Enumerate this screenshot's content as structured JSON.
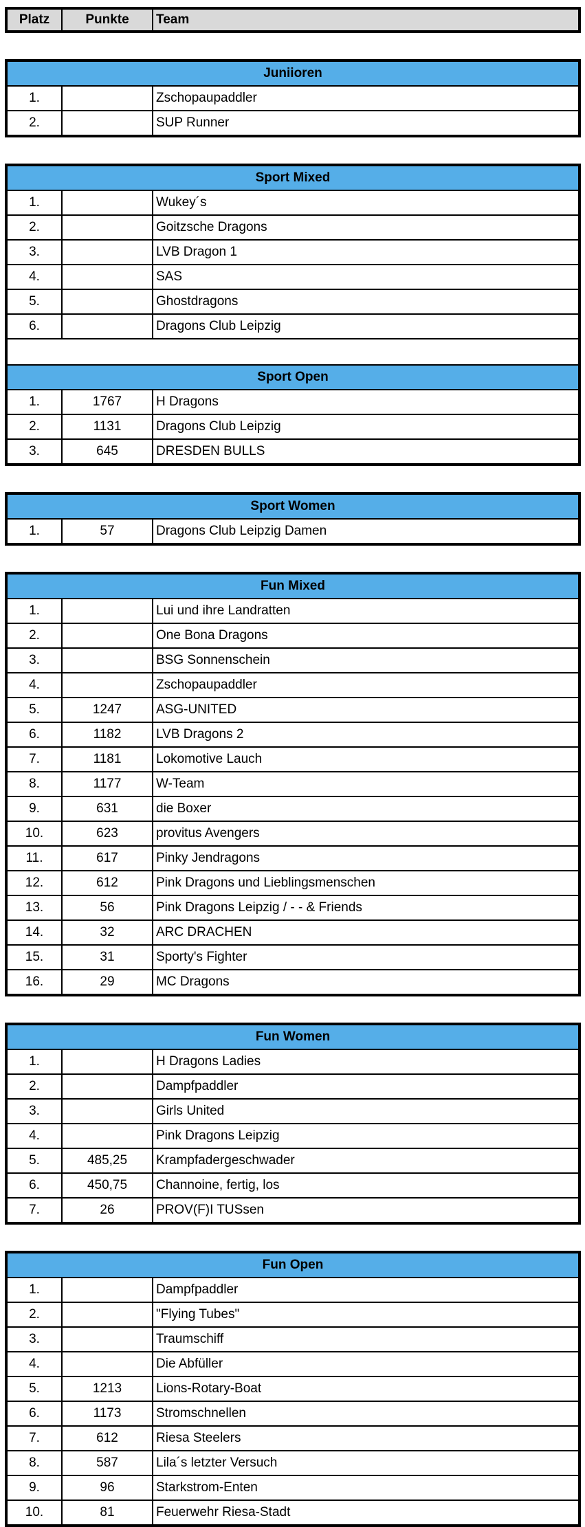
{
  "header": {
    "platz": "Platz",
    "punkte": "Punkte",
    "team": "Team"
  },
  "colors": {
    "header_bg": "#d9d9d9",
    "section_bg": "#55aee8"
  },
  "sections": [
    {
      "title": "Juniioren",
      "rows": [
        [
          "1.",
          "",
          "Zschopaupaddler"
        ],
        [
          "2.",
          "",
          "SUP Runner"
        ]
      ]
    },
    {
      "title": "Sport Mixed",
      "rows": [
        [
          "1.",
          "",
          "Wukey´s"
        ],
        [
          "2.",
          "",
          "Goitzsche Dragons"
        ],
        [
          "3.",
          "",
          "LVB Dragon 1"
        ],
        [
          "4.",
          "",
          "SAS"
        ],
        [
          "5.",
          "",
          "Ghostdragons"
        ],
        [
          "6.",
          "",
          "Dragons Club Leipzig"
        ]
      ],
      "blank_after": true
    },
    {
      "title": "Sport Open",
      "rows": [
        [
          "1.",
          "1767",
          "H Dragons"
        ],
        [
          "2.",
          "1131",
          "Dragons Club Leipzig"
        ],
        [
          "3.",
          "645",
          "DRESDEN BULLS"
        ]
      ]
    },
    {
      "title": "Sport Women",
      "rows": [
        [
          "1.",
          "57",
          "Dragons Club Leipzig Damen"
        ]
      ]
    },
    {
      "title": "Fun Mixed",
      "rows": [
        [
          "1.",
          "",
          "Lui und ihre Landratten"
        ],
        [
          "2.",
          "",
          "One Bona Dragons"
        ],
        [
          "3.",
          "",
          "BSG Sonnenschein"
        ],
        [
          "4.",
          "",
          "Zschopaupaddler"
        ],
        [
          "5.",
          "1247",
          "ASG-UNITED"
        ],
        [
          "6.",
          "1182",
          "LVB Dragons 2"
        ],
        [
          "7.",
          "1181",
          "Lokomotive Lauch"
        ],
        [
          "8.",
          "1177",
          "W-Team"
        ],
        [
          "9.",
          "631",
          "die Boxer"
        ],
        [
          "10.",
          "623",
          "provitus Avengers"
        ],
        [
          "11.",
          "617",
          "Pinky Jendragons"
        ],
        [
          "12.",
          "612",
          "Pink Dragons und Lieblingsmenschen"
        ],
        [
          "13.",
          "56",
          "Pink Dragons Leipzig / - - & Friends"
        ],
        [
          "14.",
          "32",
          "ARC DRACHEN"
        ],
        [
          "15.",
          "31",
          "Sporty's Fighter"
        ],
        [
          "16.",
          "29",
          "MC Dragons"
        ]
      ]
    },
    {
      "title": "Fun Women",
      "rows": [
        [
          "1.",
          "",
          "H Dragons Ladies"
        ],
        [
          "2.",
          "",
          "Dampfpaddler"
        ],
        [
          "3.",
          "",
          "Girls United"
        ],
        [
          "4.",
          "",
          "Pink Dragons Leipzig"
        ],
        [
          "5.",
          "485,25",
          "Krampfadergeschwader"
        ],
        [
          "6.",
          "450,75",
          "Channoine, fertig, los"
        ],
        [
          "7.",
          "26",
          "PROV(F)I TUSsen"
        ]
      ]
    },
    {
      "title": "Fun Open",
      "rows": [
        [
          "1.",
          "",
          "Dampfpaddler"
        ],
        [
          "2.",
          "",
          "\"Flying Tubes\""
        ],
        [
          "3.",
          "",
          "Traumschiff"
        ],
        [
          "4.",
          "",
          "Die Abfüller"
        ],
        [
          "5.",
          "1213",
          "Lions-Rotary-Boat"
        ],
        [
          "6.",
          "1173",
          "Stromschnellen"
        ],
        [
          "7.",
          "612",
          "Riesa Steelers"
        ],
        [
          "8.",
          "587",
          "Lila´s letzter Versuch"
        ],
        [
          "9.",
          "96",
          "Starkstrom-Enten"
        ],
        [
          "10.",
          "81",
          "Feuerwehr Riesa-Stadt"
        ]
      ]
    }
  ]
}
